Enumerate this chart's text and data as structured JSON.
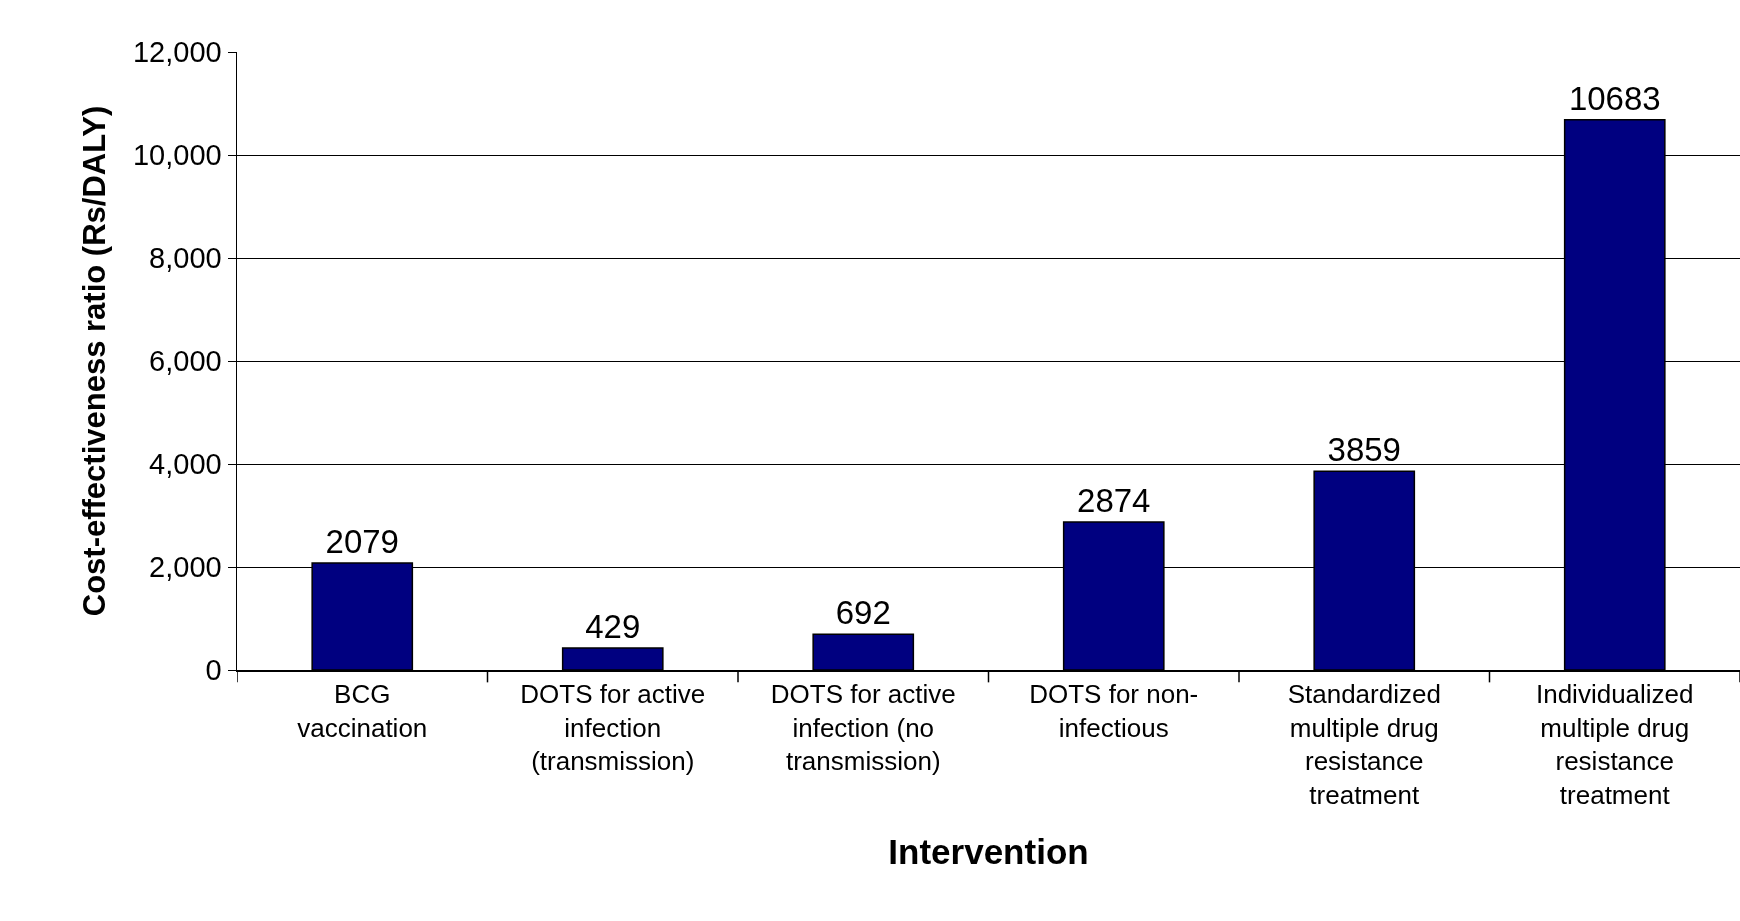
{
  "chart_data": {
    "type": "bar",
    "xlabel": "Intervention",
    "ylabel": "Cost-effectiveness ratio (Rs/DALY)",
    "categories": [
      "BCG vaccination",
      "DOTS for active infection (transmission)",
      "DOTS for active infection (no transmission)",
      "DOTS for non-infectious",
      "Standardized multiple drug resistance treatment",
      "Individualized multiple drug resistance treatment"
    ],
    "values": [
      2079,
      429,
      692,
      2874,
      3859,
      10683
    ],
    "color": "#000080",
    "ylim": [
      0,
      12000
    ],
    "yticks": [
      {
        "value": 0,
        "label": "0"
      },
      {
        "value": 2000,
        "label": "2,000"
      },
      {
        "value": 4000,
        "label": "4,000"
      },
      {
        "value": 6000,
        "label": "6,000"
      },
      {
        "value": 8000,
        "label": "8,000"
      },
      {
        "value": 10000,
        "label": "10,000"
      },
      {
        "value": 12000,
        "label": "12,000"
      }
    ],
    "grid": "y",
    "data_labels": true
  }
}
